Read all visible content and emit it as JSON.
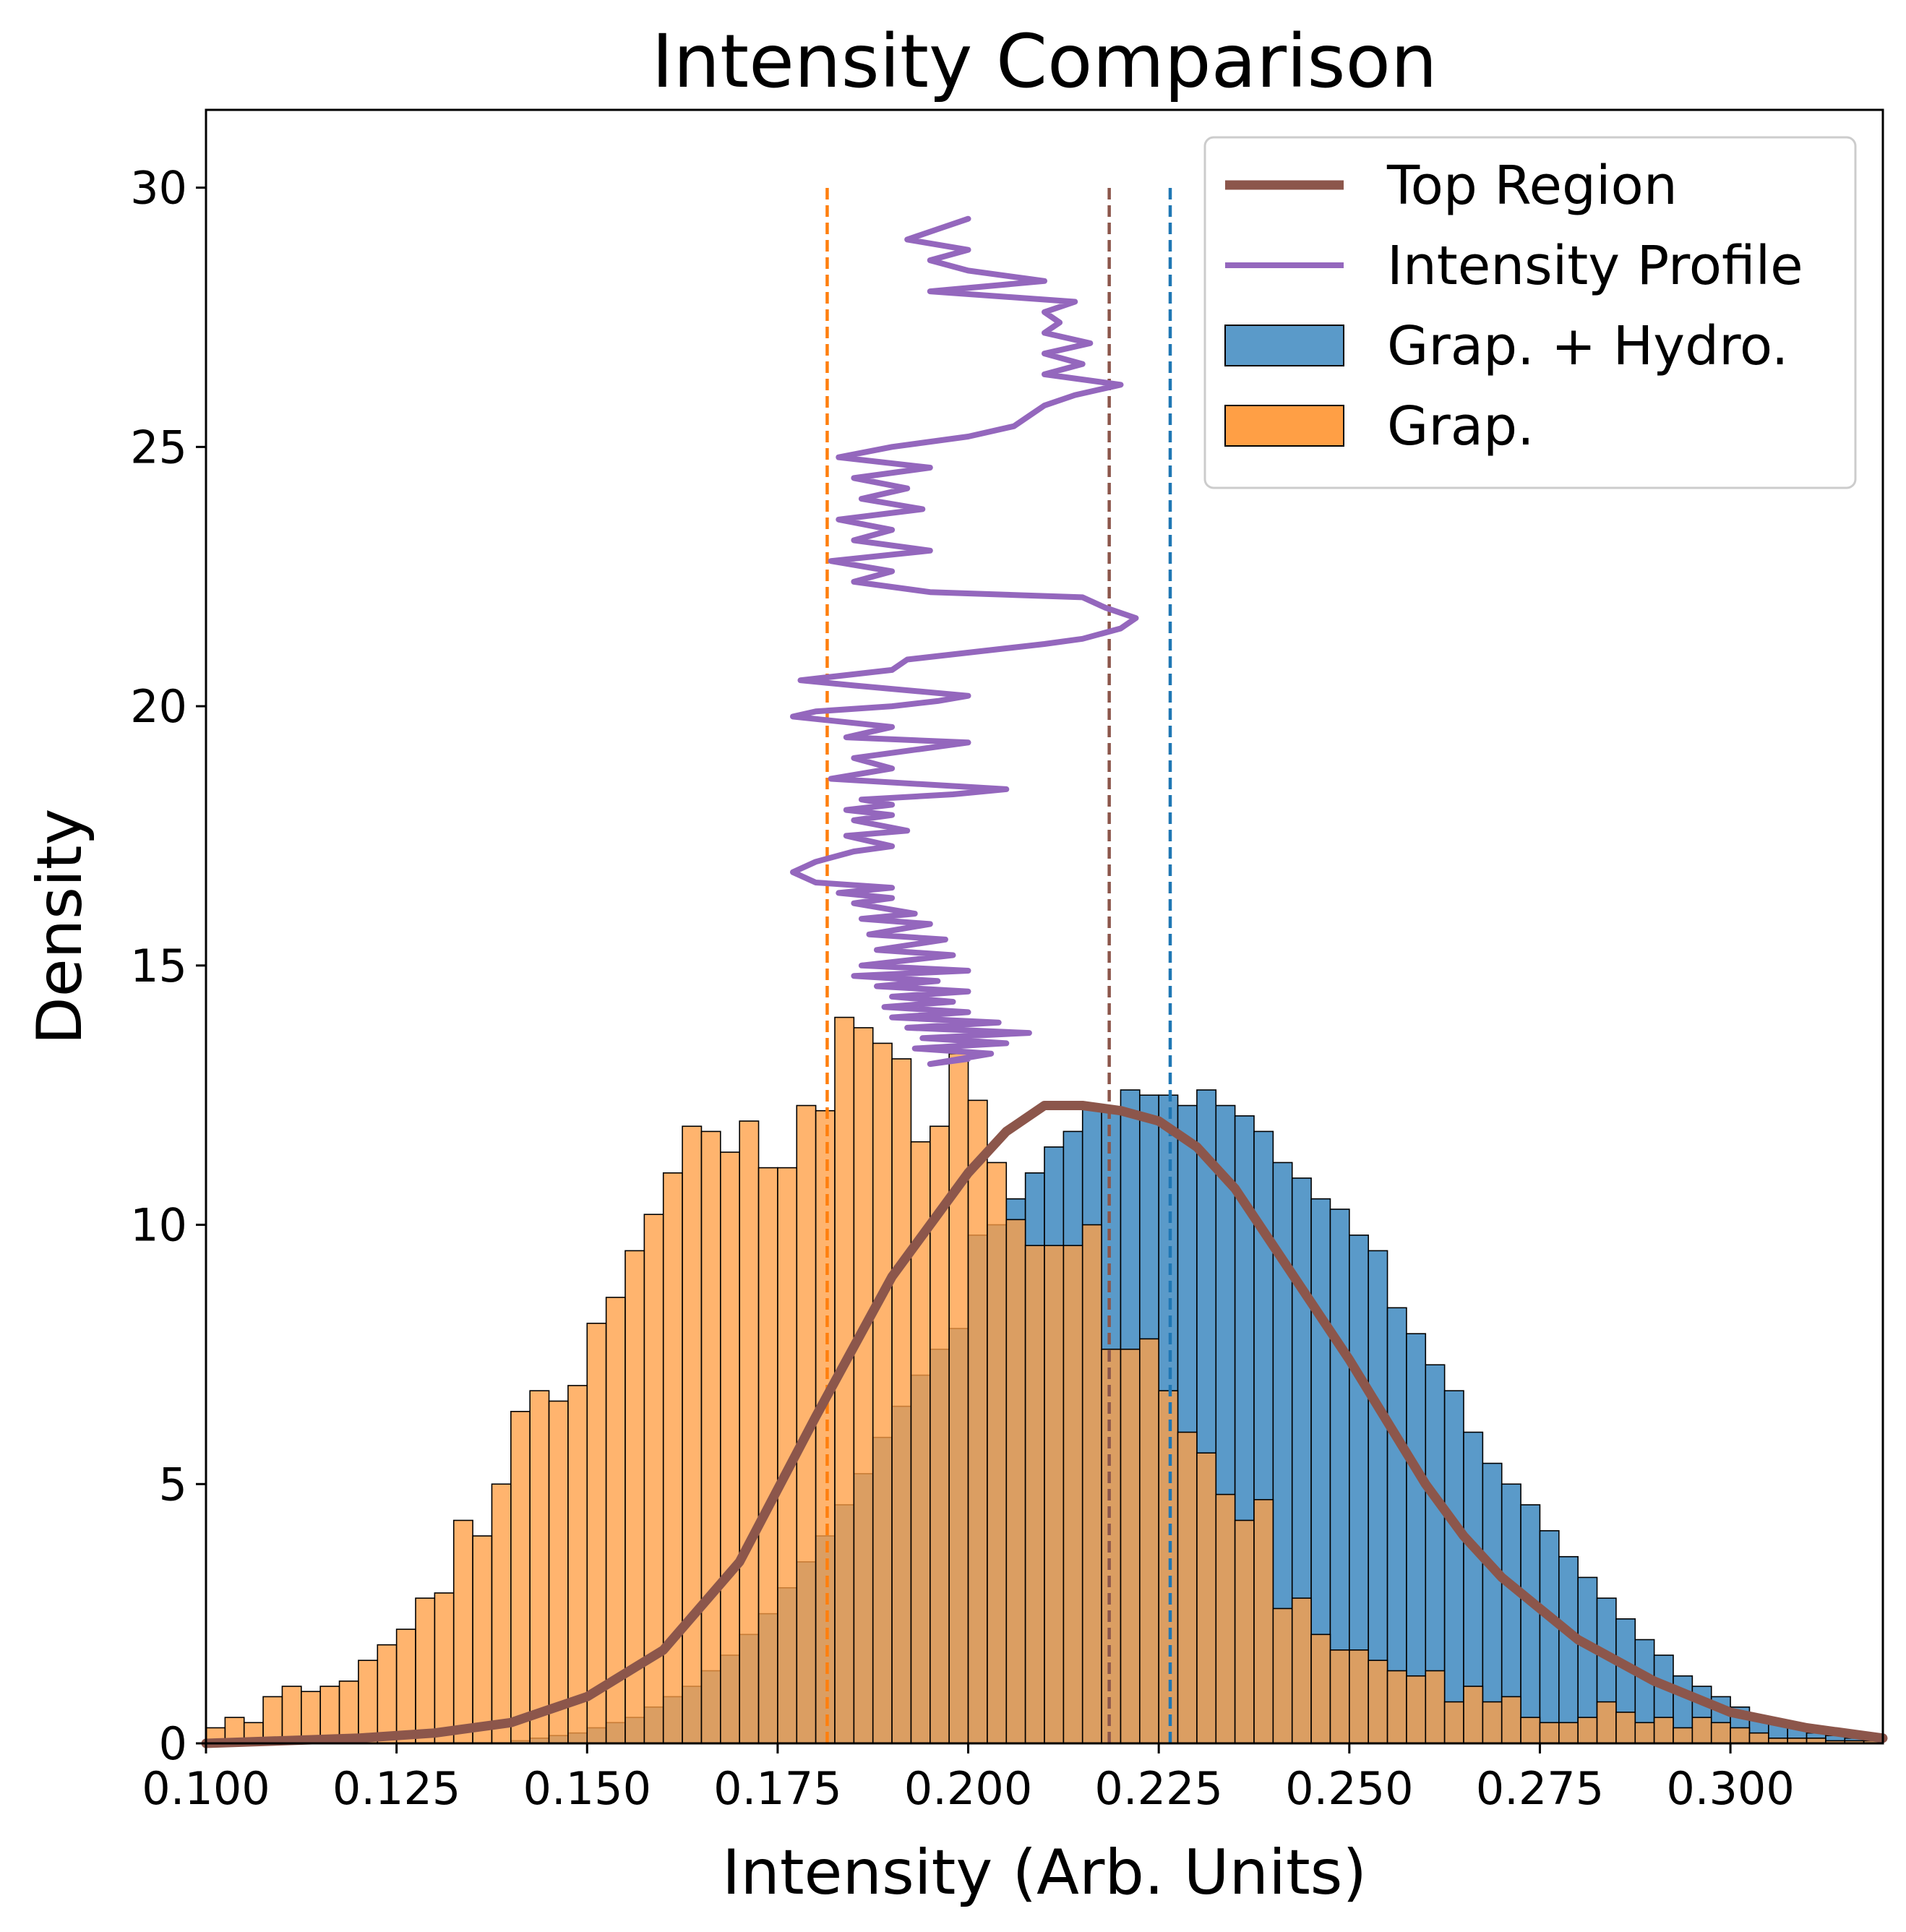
{
  "chart_data": {
    "type": "histogram",
    "title": "Intensity Comparison",
    "xlabel": "Intensity (Arb. Units)",
    "ylabel": "Density",
    "xlim": [
      0.1,
      0.32
    ],
    "ylim": [
      0,
      31.5
    ],
    "xticks": [
      "0.100",
      "0.125",
      "0.150",
      "0.175",
      "0.200",
      "0.225",
      "0.250",
      "0.275",
      "0.300"
    ],
    "yticks": [
      "0",
      "5",
      "10",
      "15",
      "20",
      "25",
      "30"
    ],
    "grid": false,
    "legend_position": "top-right",
    "legend": [
      "Top Region",
      "Intensity Profile",
      "Grap. + Hydro.",
      "Grap."
    ],
    "bin_width": 0.0025,
    "series": [
      {
        "name": "Grap. + Hydro.",
        "kind": "histogram",
        "color": "#5a9ac9",
        "bins_start": 0.1,
        "values": [
          0,
          0,
          0,
          0,
          0,
          0,
          0,
          0,
          0,
          0,
          0,
          0,
          0,
          0,
          0,
          0,
          0.05,
          0.1,
          0.15,
          0.2,
          0.3,
          0.4,
          0.5,
          0.7,
          0.9,
          1.1,
          1.4,
          1.7,
          2.1,
          2.5,
          3.0,
          3.5,
          4.0,
          4.6,
          5.2,
          5.9,
          6.5,
          7.1,
          7.6,
          8.0,
          9.8,
          10.0,
          10.5,
          11.0,
          11.5,
          11.8,
          12.3,
          12.2,
          12.6,
          12.5,
          12.5,
          12.3,
          12.6,
          12.3,
          12.1,
          11.8,
          11.2,
          10.9,
          10.5,
          10.3,
          9.8,
          9.5,
          8.4,
          7.9,
          7.3,
          6.8,
          6.0,
          5.4,
          5.0,
          4.6,
          4.1,
          3.6,
          3.2,
          2.8,
          2.4,
          2.0,
          1.7,
          1.3,
          1.1,
          0.9,
          0.7,
          0.5,
          0.4,
          0.3,
          0.2,
          0.15,
          0.1,
          0.05
        ]
      },
      {
        "name": "Grap.",
        "kind": "histogram",
        "color": "#ff9f45",
        "bins_start": 0.1,
        "values": [
          0.3,
          0.5,
          0.4,
          0.9,
          1.1,
          1.0,
          1.1,
          1.2,
          1.6,
          1.9,
          2.2,
          2.8,
          2.9,
          4.3,
          4.0,
          5.0,
          6.4,
          6.8,
          6.6,
          6.9,
          8.1,
          8.6,
          9.5,
          10.2,
          11.0,
          11.9,
          11.8,
          11.4,
          12.0,
          11.1,
          11.1,
          12.3,
          12.2,
          14.0,
          13.8,
          13.5,
          13.2,
          11.6,
          11.9,
          13.3,
          12.4,
          11.2,
          10.1,
          9.6,
          9.6,
          9.6,
          10.0,
          7.6,
          7.6,
          7.8,
          6.8,
          6.0,
          5.6,
          4.8,
          4.3,
          4.7,
          2.6,
          2.8,
          2.1,
          1.8,
          1.8,
          1.6,
          1.4,
          1.3,
          1.4,
          0.8,
          1.1,
          0.8,
          0.9,
          0.5,
          0.4,
          0.4,
          0.5,
          0.8,
          0.6,
          0.4,
          0.5,
          0.3,
          0.5,
          0.4,
          0.3,
          0.2,
          0.1,
          0.1,
          0.1,
          0.05,
          0.05,
          0.05
        ]
      },
      {
        "name": "Top Region",
        "kind": "line",
        "color": "#8c564b",
        "points": [
          [
            0.1,
            0.0
          ],
          [
            0.12,
            0.1
          ],
          [
            0.13,
            0.2
          ],
          [
            0.14,
            0.4
          ],
          [
            0.15,
            0.9
          ],
          [
            0.16,
            1.8
          ],
          [
            0.17,
            3.5
          ],
          [
            0.18,
            6.3
          ],
          [
            0.19,
            9.0
          ],
          [
            0.2,
            11.0
          ],
          [
            0.205,
            11.8
          ],
          [
            0.21,
            12.3
          ],
          [
            0.215,
            12.3
          ],
          [
            0.22,
            12.2
          ],
          [
            0.225,
            12.0
          ],
          [
            0.23,
            11.5
          ],
          [
            0.235,
            10.7
          ],
          [
            0.24,
            9.6
          ],
          [
            0.245,
            8.5
          ],
          [
            0.25,
            7.4
          ],
          [
            0.255,
            6.2
          ],
          [
            0.26,
            5.0
          ],
          [
            0.265,
            4.0
          ],
          [
            0.27,
            3.2
          ],
          [
            0.275,
            2.6
          ],
          [
            0.28,
            2.0
          ],
          [
            0.29,
            1.2
          ],
          [
            0.3,
            0.6
          ],
          [
            0.31,
            0.3
          ],
          [
            0.32,
            0.1
          ]
        ]
      },
      {
        "name": "Intensity Profile",
        "kind": "line",
        "color": "#9467bd",
        "points": [
          [
            0.2,
            13.2
          ],
          [
            0.195,
            13.1
          ],
          [
            0.203,
            13.3
          ],
          [
            0.193,
            13.4
          ],
          [
            0.205,
            13.5
          ],
          [
            0.194,
            13.6
          ],
          [
            0.208,
            13.7
          ],
          [
            0.192,
            13.8
          ],
          [
            0.204,
            13.9
          ],
          [
            0.19,
            14.0
          ],
          [
            0.2,
            14.1
          ],
          [
            0.189,
            14.2
          ],
          [
            0.198,
            14.3
          ],
          [
            0.19,
            14.4
          ],
          [
            0.2,
            14.5
          ],
          [
            0.188,
            14.6
          ],
          [
            0.196,
            14.7
          ],
          [
            0.185,
            14.8
          ],
          [
            0.2,
            14.9
          ],
          [
            0.186,
            15.0
          ],
          [
            0.198,
            15.2
          ],
          [
            0.188,
            15.3
          ],
          [
            0.197,
            15.5
          ],
          [
            0.187,
            15.6
          ],
          [
            0.195,
            15.8
          ],
          [
            0.186,
            15.9
          ],
          [
            0.193,
            16.0
          ],
          [
            0.185,
            16.2
          ],
          [
            0.19,
            16.3
          ],
          [
            0.183,
            16.4
          ],
          [
            0.19,
            16.5
          ],
          [
            0.18,
            16.6
          ],
          [
            0.177,
            16.8
          ],
          [
            0.18,
            17.0
          ],
          [
            0.185,
            17.2
          ],
          [
            0.19,
            17.3
          ],
          [
            0.184,
            17.5
          ],
          [
            0.192,
            17.6
          ],
          [
            0.185,
            17.8
          ],
          [
            0.19,
            17.9
          ],
          [
            0.184,
            18.0
          ],
          [
            0.19,
            18.1
          ],
          [
            0.186,
            18.2
          ],
          [
            0.198,
            18.3
          ],
          [
            0.205,
            18.4
          ],
          [
            0.182,
            18.6
          ],
          [
            0.19,
            18.8
          ],
          [
            0.185,
            19.0
          ],
          [
            0.195,
            19.2
          ],
          [
            0.2,
            19.3
          ],
          [
            0.184,
            19.4
          ],
          [
            0.19,
            19.6
          ],
          [
            0.177,
            19.8
          ],
          [
            0.18,
            19.9
          ],
          [
            0.19,
            20.0
          ],
          [
            0.196,
            20.1
          ],
          [
            0.2,
            20.2
          ],
          [
            0.185,
            20.4
          ],
          [
            0.178,
            20.5
          ],
          [
            0.19,
            20.7
          ],
          [
            0.192,
            20.9
          ],
          [
            0.21,
            21.2
          ],
          [
            0.215,
            21.3
          ],
          [
            0.22,
            21.5
          ],
          [
            0.222,
            21.7
          ],
          [
            0.218,
            21.9
          ],
          [
            0.215,
            22.1
          ],
          [
            0.195,
            22.2
          ],
          [
            0.185,
            22.4
          ],
          [
            0.19,
            22.6
          ],
          [
            0.182,
            22.8
          ],
          [
            0.195,
            23.0
          ],
          [
            0.185,
            23.2
          ],
          [
            0.19,
            23.4
          ],
          [
            0.183,
            23.6
          ],
          [
            0.194,
            23.8
          ],
          [
            0.186,
            24.0
          ],
          [
            0.192,
            24.2
          ],
          [
            0.185,
            24.4
          ],
          [
            0.195,
            24.6
          ],
          [
            0.183,
            24.8
          ],
          [
            0.19,
            25.0
          ],
          [
            0.2,
            25.2
          ],
          [
            0.206,
            25.4
          ],
          [
            0.208,
            25.6
          ],
          [
            0.21,
            25.8
          ],
          [
            0.214,
            26.0
          ],
          [
            0.22,
            26.2
          ],
          [
            0.21,
            26.4
          ],
          [
            0.215,
            26.6
          ],
          [
            0.21,
            26.8
          ],
          [
            0.216,
            27.0
          ],
          [
            0.21,
            27.2
          ],
          [
            0.212,
            27.4
          ],
          [
            0.21,
            27.6
          ],
          [
            0.214,
            27.8
          ],
          [
            0.195,
            28.0
          ],
          [
            0.21,
            28.2
          ],
          [
            0.2,
            28.4
          ],
          [
            0.195,
            28.6
          ],
          [
            0.2,
            28.8
          ],
          [
            0.192,
            29.0
          ],
          [
            0.196,
            29.2
          ],
          [
            0.2,
            29.4
          ]
        ]
      }
    ],
    "vlines": [
      {
        "x": 0.1815,
        "color": "#ff7f0e",
        "style": "dashed",
        "ymax": 30
      },
      {
        "x": 0.2185,
        "color": "#8c564b",
        "style": "dashed",
        "ymax": 30
      },
      {
        "x": 0.2265,
        "color": "#1f77b4",
        "style": "dashed",
        "ymax": 30
      }
    ]
  }
}
